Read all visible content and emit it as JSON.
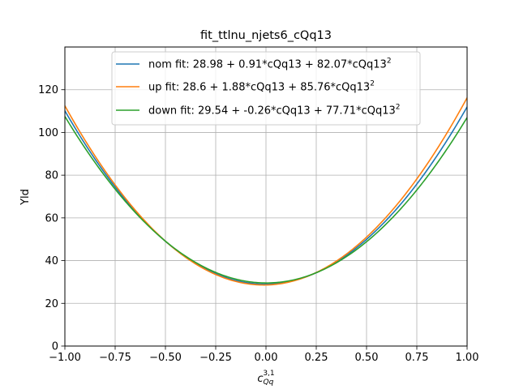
{
  "chart_data": {
    "type": "line",
    "title": "fit_ttlnu_njets6_cQq13",
    "xlabel_base": "c",
    "xlabel_sub": "Qq",
    "xlabel_sup": "3,1",
    "ylabel": "Yld",
    "xlim": [
      -1.0,
      1.0
    ],
    "ylim": [
      0,
      140
    ],
    "xticks": [
      -1.0,
      -0.75,
      -0.5,
      -0.25,
      0.0,
      0.25,
      0.5,
      0.75,
      1.0
    ],
    "xtick_labels": [
      "−1.00",
      "−0.75",
      "−0.50",
      "−0.25",
      "0.00",
      "0.25",
      "0.50",
      "0.75",
      "1.00"
    ],
    "yticks": [
      0,
      20,
      40,
      60,
      80,
      100,
      120
    ],
    "ytick_labels": [
      "0",
      "20",
      "40",
      "60",
      "80",
      "100",
      "120"
    ],
    "grid": true,
    "legend_position": "top-center",
    "series": [
      {
        "name": "nom fit: 28.98 + 0.91*cQq13 + 82.07*cQq13",
        "name_sup": "2",
        "color": "#1f77b4",
        "coefficients": [
          28.98,
          0.91,
          82.07
        ]
      },
      {
        "name": "up fit: 28.6 + 1.88*cQq13 + 85.76*cQq13",
        "name_sup": "2",
        "color": "#ff7f0e",
        "coefficients": [
          28.6,
          1.88,
          85.76
        ]
      },
      {
        "name": "down fit: 29.54 + -0.26*cQq13 + 77.71*cQq13",
        "name_sup": "2",
        "color": "#2ca02c",
        "coefficients": [
          29.54,
          -0.26,
          77.71
        ]
      }
    ]
  }
}
